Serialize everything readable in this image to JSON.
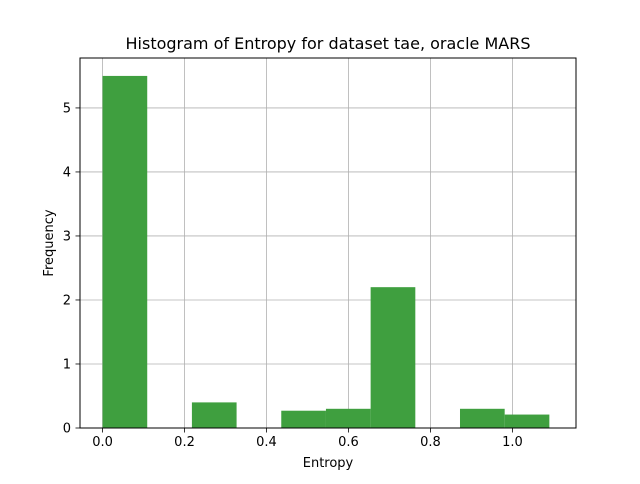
{
  "chart_data": {
    "type": "bar",
    "title": "Histogram of Entropy for dataset tae, oracle MARS",
    "xlabel": "Entropy",
    "ylabel": "Frequency",
    "xlim": [
      -0.055,
      1.155
    ],
    "ylim": [
      0,
      5.78
    ],
    "grid": true,
    "bar_color": "#3f9f3f",
    "grid_color": "#b0b0b0",
    "xticks": [
      {
        "value": 0.0,
        "label": "0.0"
      },
      {
        "value": 0.2,
        "label": "0.2"
      },
      {
        "value": 0.4,
        "label": "0.4"
      },
      {
        "value": 0.6,
        "label": "0.6"
      },
      {
        "value": 0.8,
        "label": "0.8"
      },
      {
        "value": 1.0,
        "label": "1.0"
      }
    ],
    "yticks": [
      {
        "value": 0,
        "label": "0"
      },
      {
        "value": 1,
        "label": "1"
      },
      {
        "value": 2,
        "label": "2"
      },
      {
        "value": 3,
        "label": "3"
      },
      {
        "value": 4,
        "label": "4"
      },
      {
        "value": 5,
        "label": "5"
      }
    ],
    "bins": [
      {
        "x0": 0.0,
        "x1": 0.109,
        "value": 5.5
      },
      {
        "x0": 0.109,
        "x1": 0.218,
        "value": 0
      },
      {
        "x0": 0.218,
        "x1": 0.327,
        "value": 0.4
      },
      {
        "x0": 0.327,
        "x1": 0.436,
        "value": 0
      },
      {
        "x0": 0.436,
        "x1": 0.545,
        "value": 0.27
      },
      {
        "x0": 0.545,
        "x1": 0.654,
        "value": 0.3
      },
      {
        "x0": 0.654,
        "x1": 0.763,
        "value": 2.2
      },
      {
        "x0": 0.763,
        "x1": 0.872,
        "value": 0
      },
      {
        "x0": 0.872,
        "x1": 0.981,
        "value": 0.3
      },
      {
        "x0": 0.981,
        "x1": 1.09,
        "value": 0.21
      }
    ]
  }
}
